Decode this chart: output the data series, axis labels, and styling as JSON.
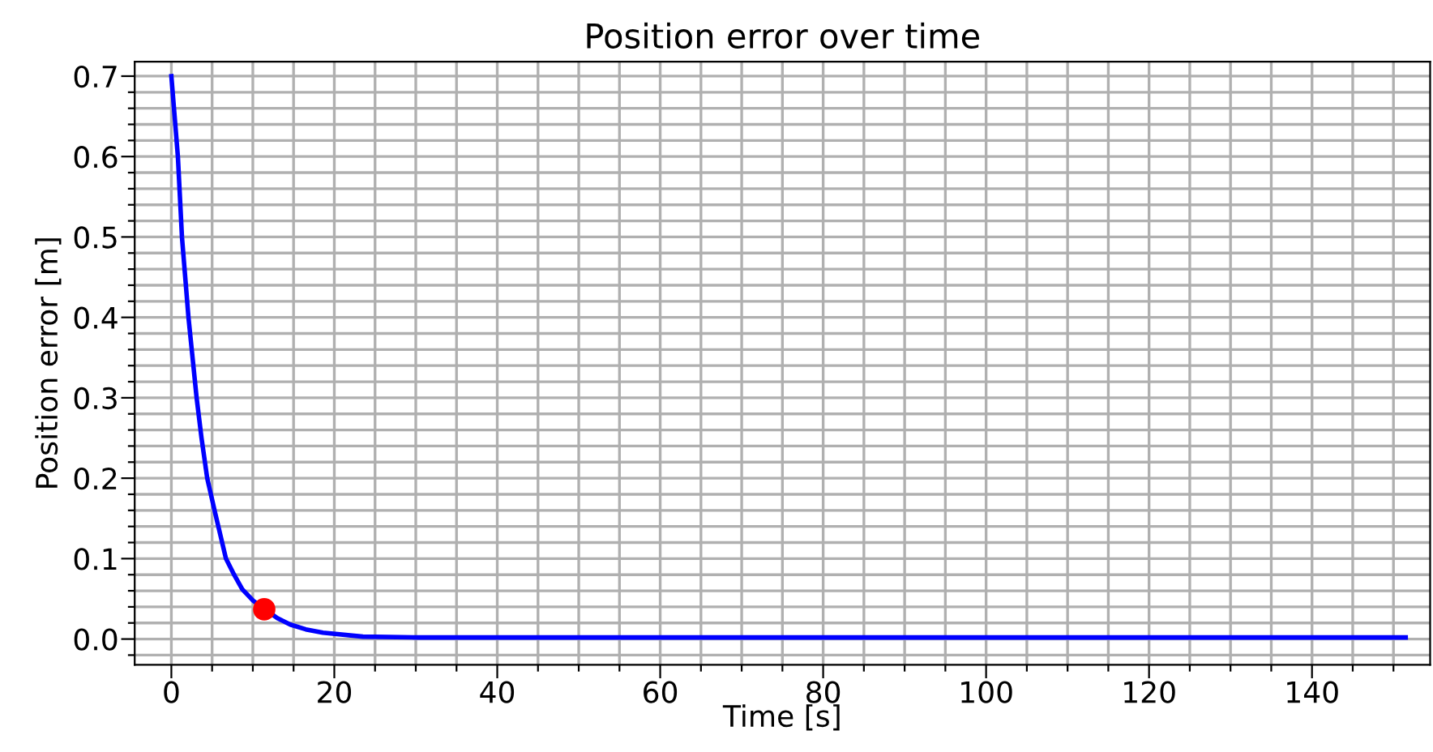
{
  "chart_data": {
    "type": "line",
    "title": "Position error over time",
    "xlabel": "Time [s]",
    "ylabel": "Position error [m]",
    "series": [
      {
        "color": "#0000ff",
        "x": [
          0,
          0.4,
          0.8,
          1.3,
          1.7,
          2.1,
          2.6,
          3.1,
          3.7,
          4.4,
          5.3,
          6,
          6.7,
          7.7,
          8.7,
          10,
          13,
          14.6,
          16.5,
          18.6,
          23.5,
          30,
          60,
          100,
          151.5
        ],
        "values": [
          0.7,
          0.65,
          0.6,
          0.5,
          0.45,
          0.4,
          0.35,
          0.3,
          0.25,
          0.2,
          0.16,
          0.13,
          0.1,
          0.08,
          0.062,
          0.048,
          0.026,
          0.018,
          0.012,
          0.008,
          0.003,
          0.002,
          0.002,
          0.002,
          0.002
        ]
      },
      {
        "type": "scatter",
        "color": "#ff0000",
        "marker": "circle",
        "x": [
          11.4
        ],
        "values": [
          0.037
        ]
      }
    ],
    "xlim": [
      -4.5,
      154.5
    ],
    "ylim": [
      -0.032,
      0.718
    ],
    "xticks": [
      0,
      {
        "value": 5,
        "label": null
      },
      {
        "value": 10,
        "label": null
      },
      {
        "value": 15,
        "label": null
      },
      20,
      {
        "value": 25,
        "label": null
      },
      {
        "value": 30,
        "label": null
      },
      {
        "value": 35,
        "label": null
      },
      40,
      {
        "value": 45,
        "label": null
      },
      {
        "value": 50,
        "label": null
      },
      {
        "value": 55,
        "label": null
      },
      60,
      {
        "value": 65,
        "label": null
      },
      {
        "value": 70,
        "label": null
      },
      {
        "value": 75,
        "label": null
      },
      80,
      {
        "value": 85,
        "label": null
      },
      {
        "value": 90,
        "label": null
      },
      {
        "value": 95,
        "label": null
      },
      100,
      {
        "value": 105,
        "label": null
      },
      {
        "value": 110,
        "label": null
      },
      {
        "value": 115,
        "label": null
      },
      120,
      {
        "value": 125,
        "label": null
      },
      {
        "value": 130,
        "label": null
      },
      {
        "value": 135,
        "label": null
      },
      140,
      {
        "value": 145,
        "label": null
      },
      {
        "value": 150,
        "label": null
      }
    ],
    "yticks": [
      {
        "value": -0.02,
        "label": null
      },
      {
        "value": 0,
        "label": "0.0"
      },
      {
        "value": 0.02,
        "label": null
      },
      {
        "value": 0.04,
        "label": null
      },
      {
        "value": 0.06,
        "label": null
      },
      {
        "value": 0.08,
        "label": null
      },
      0.1,
      {
        "value": 0.12,
        "label": null
      },
      {
        "value": 0.14,
        "label": null
      },
      {
        "value": 0.16,
        "label": null
      },
      {
        "value": 0.18,
        "label": null
      },
      0.2,
      {
        "value": 0.22,
        "label": null
      },
      {
        "value": 0.24,
        "label": null
      },
      {
        "value": 0.26,
        "label": null
      },
      {
        "value": 0.28,
        "label": null
      },
      0.3,
      {
        "value": 0.32,
        "label": null
      },
      {
        "value": 0.34,
        "label": null
      },
      {
        "value": 0.36,
        "label": null
      },
      {
        "value": 0.38,
        "label": null
      },
      0.4,
      {
        "value": 0.42,
        "label": null
      },
      {
        "value": 0.44,
        "label": null
      },
      {
        "value": 0.46,
        "label": null
      },
      {
        "value": 0.48,
        "label": null
      },
      0.5,
      {
        "value": 0.52,
        "label": null
      },
      {
        "value": 0.54,
        "label": null
      },
      {
        "value": 0.56,
        "label": null
      },
      {
        "value": 0.58,
        "label": null
      },
      0.6,
      {
        "value": 0.62,
        "label": null
      },
      {
        "value": 0.64,
        "label": null
      },
      {
        "value": 0.66,
        "label": null
      },
      {
        "value": 0.68,
        "label": null
      },
      0.7
    ],
    "grid": true
  }
}
